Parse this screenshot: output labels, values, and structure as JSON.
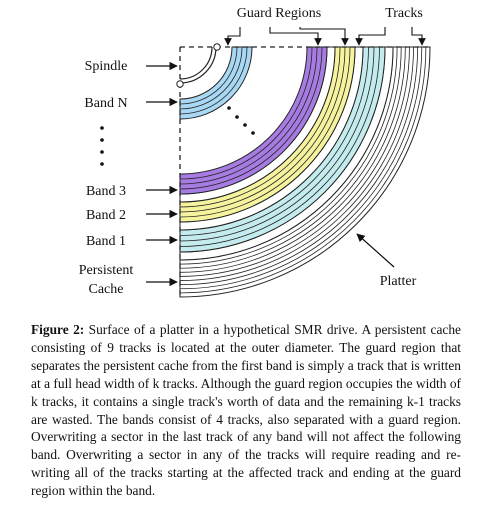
{
  "labels": {
    "guard_regions": "Guard Regions",
    "tracks": "Tracks",
    "spindle": "Spindle",
    "band_n": "Band N",
    "band_3": "Band 3",
    "band_2": "Band 2",
    "band_1": "Band 1",
    "persistent": "Persistent",
    "cache": "Cache",
    "platter": "Platter"
  },
  "colors": {
    "persistent_cache": "#ffffff",
    "band_1": "#c4ecee",
    "band_2": "#f6f39e",
    "band_3": "#a77ce2",
    "band_n": "#a9d8f4",
    "guard": "#ffffff",
    "stroke": "#222222"
  },
  "caption": {
    "heading": "Figure 2:",
    "body": "Surface of a platter in a hypothetical SMR drive. A persistent cache consisting of 9 tracks is located at the outer diameter. The guard region that separates the persistent cache from the first band is simply a track that is written at a full head width of k tracks. Although the guard region occupies the width of k tracks, it contains a single track's worth of data and the remaining k-1 tracks are wasted. The bands consist of 4 tracks, also separated with a guard region. Overwriting a sector in the last track of any band will not affect the following band. Overwriting a sector in any of the tracks will require reading and re-writing all of the tracks starting at the affected track and ending at the guard region within the band."
  }
}
